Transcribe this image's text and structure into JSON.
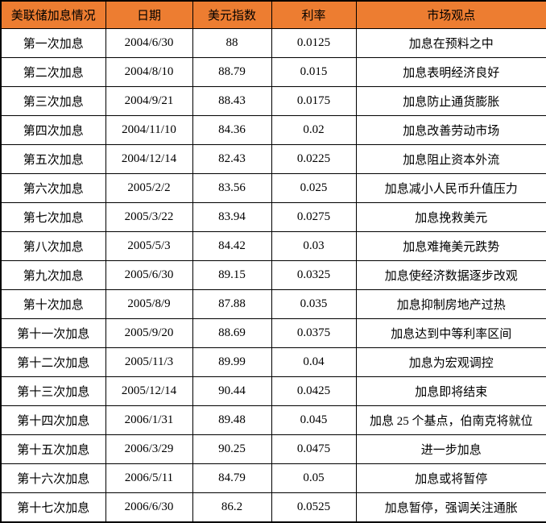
{
  "chart_data": {
    "type": "table",
    "title": "美联储加息情况",
    "columns": [
      "美联储加息情况",
      "日期",
      "美元指数",
      "利率",
      "市场观点"
    ],
    "rows": [
      [
        "第一次加息",
        "2004/6/30",
        "88",
        "0.0125",
        "加息在预料之中"
      ],
      [
        "第二次加息",
        "2004/8/10",
        "88.79",
        "0.015",
        "加息表明经济良好"
      ],
      [
        "第三次加息",
        "2004/9/21",
        "88.43",
        "0.0175",
        "加息防止通货膨胀"
      ],
      [
        "第四次加息",
        "2004/11/10",
        "84.36",
        "0.02",
        "加息改善劳动市场"
      ],
      [
        "第五次加息",
        "2004/12/14",
        "82.43",
        "0.0225",
        "加息阻止资本外流"
      ],
      [
        "第六次加息",
        "2005/2/2",
        "83.56",
        "0.025",
        "加息减小人民币升值压力"
      ],
      [
        "第七次加息",
        "2005/3/22",
        "83.94",
        "0.0275",
        "加息挽救美元"
      ],
      [
        "第八次加息",
        "2005/5/3",
        "84.42",
        "0.03",
        "加息难掩美元跌势"
      ],
      [
        "第九次加息",
        "2005/6/30",
        "89.15",
        "0.0325",
        "加息使经济数据逐步改观"
      ],
      [
        "第十次加息",
        "2005/8/9",
        "87.88",
        "0.035",
        "加息抑制房地产过热"
      ],
      [
        "第十一次加息",
        "2005/9/20",
        "88.69",
        "0.0375",
        "加息达到中等利率区间"
      ],
      [
        "第十二次加息",
        "2005/11/3",
        "89.99",
        "0.04",
        "加息为宏观调控"
      ],
      [
        "第十三次加息",
        "2005/12/14",
        "90.44",
        "0.0425",
        "加息即将结束"
      ],
      [
        "第十四次加息",
        "2006/1/31",
        "89.48",
        "0.045",
        "加息 25 个基点，伯南克将就位"
      ],
      [
        "第十五次加息",
        "2006/3/29",
        "90.25",
        "0.0475",
        "进一步加息"
      ],
      [
        "第十六次加息",
        "2006/5/11",
        "84.79",
        "0.05",
        "加息或将暂停"
      ],
      [
        "第十七次加息",
        "2006/6/30",
        "86.2",
        "0.0525",
        "加息暂停，强调关注通胀"
      ]
    ]
  },
  "colors": {
    "header_bg": "#ED7D31",
    "header_text": "#000000",
    "body_bg": "#FFFFFF",
    "border": "#000000"
  }
}
